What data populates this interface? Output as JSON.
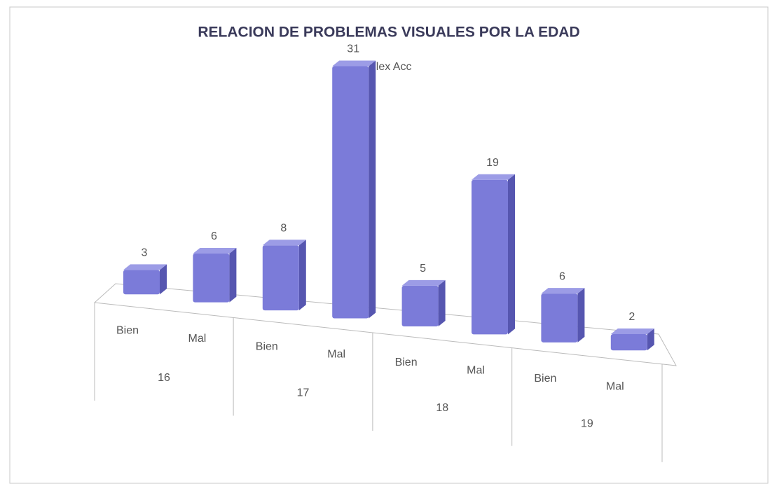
{
  "chart_data": {
    "type": "bar3d",
    "title": "RELACION DE PROBLEMAS VISUALES POR LA EDAD",
    "categories": [
      "Bien",
      "Mal",
      "Bien",
      "Mal",
      "Bien",
      "Mal",
      "Bien",
      "Mal"
    ],
    "groups": [
      "16",
      "17",
      "18",
      "19"
    ],
    "series": [
      {
        "name": "Flex Acc",
        "color": "#7b7bd9",
        "values": [
          3,
          6,
          8,
          31,
          5,
          19,
          6,
          2
        ]
      }
    ]
  }
}
